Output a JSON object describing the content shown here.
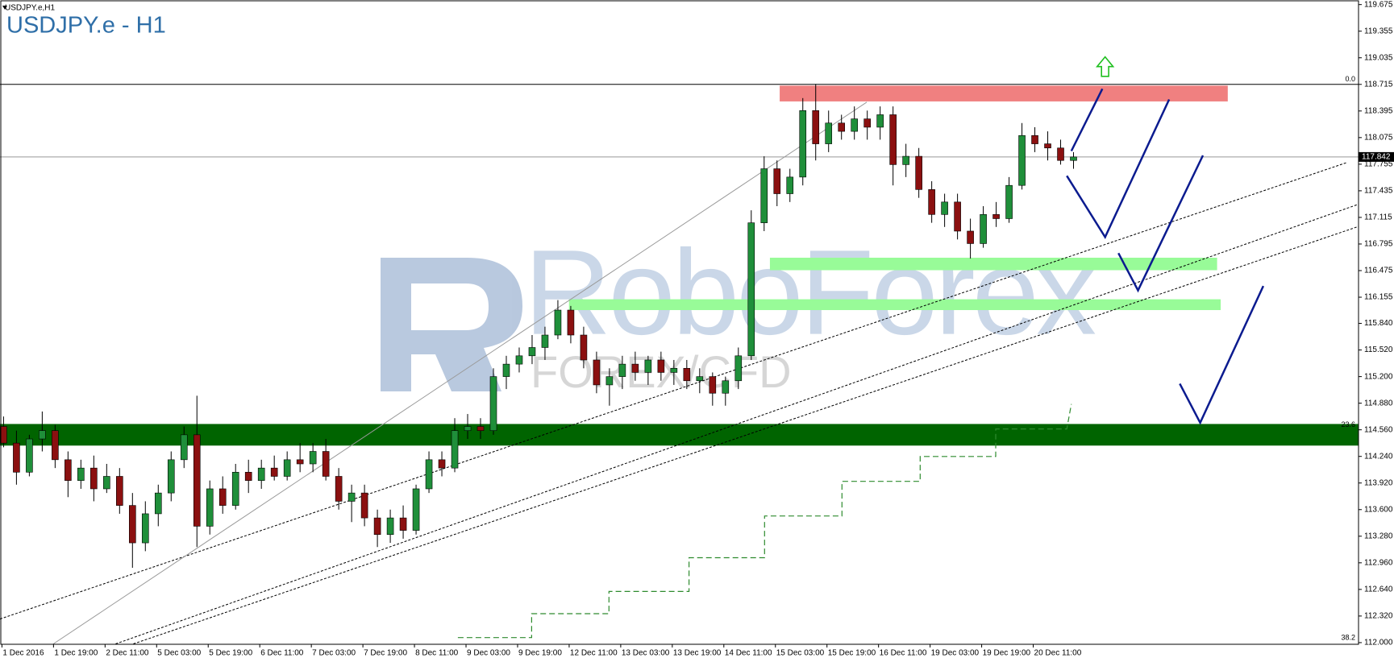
{
  "chart_data": {
    "type": "candlestick",
    "header": "USDJPY.e,H1",
    "title": "USDJPY.e - H1",
    "watermark": {
      "brand": "RoboForex",
      "sub": "FOREX/CFD"
    },
    "up_color": "#1f8f3a",
    "down_color": "#8b1010",
    "ylim": [
      111.98,
      119.73
    ],
    "yticks": [
      {
        "value": 119.675,
        "label": "119.675"
      },
      {
        "value": 119.355,
        "label": "119.355"
      },
      {
        "value": 119.035,
        "label": "119.035"
      },
      {
        "value": 118.715,
        "label": "118.715"
      },
      {
        "value": 118.395,
        "label": "118.395"
      },
      {
        "value": 118.075,
        "label": "118.075"
      },
      {
        "value": 117.755,
        "label": "117.755"
      },
      {
        "value": 117.435,
        "label": "117.435"
      },
      {
        "value": 117.115,
        "label": "117.115"
      },
      {
        "value": 116.795,
        "label": "116.795"
      },
      {
        "value": 116.475,
        "label": "116.475"
      },
      {
        "value": 116.155,
        "label": "116.155"
      },
      {
        "value": 115.84,
        "label": "115.840"
      },
      {
        "value": 115.52,
        "label": "115.520"
      },
      {
        "value": 115.2,
        "label": "115.200"
      },
      {
        "value": 114.88,
        "label": "114.880"
      },
      {
        "value": 114.56,
        "label": "114.560"
      },
      {
        "value": 114.24,
        "label": "114.240"
      },
      {
        "value": 113.92,
        "label": "113.920"
      },
      {
        "value": 113.6,
        "label": "113.600"
      },
      {
        "value": 113.28,
        "label": "113.280"
      },
      {
        "value": 112.96,
        "label": "112.960"
      },
      {
        "value": 112.64,
        "label": "112.640"
      },
      {
        "value": 112.32,
        "label": "112.320"
      },
      {
        "value": 112.0,
        "label": "112.000"
      }
    ],
    "last_price": 117.842,
    "fib_levels": [
      {
        "label": "0.0",
        "price": 118.715
      },
      {
        "label": "23.6",
        "price": 114.56
      },
      {
        "label": "38.2",
        "price": 112.0
      }
    ],
    "zones": [
      {
        "low": 118.51,
        "high": 118.7,
        "color": "#f08080"
      },
      {
        "low": 116.48,
        "high": 116.63,
        "color": "#98fb98"
      },
      {
        "low": 116.0,
        "high": 116.13,
        "color": "#98fb98"
      },
      {
        "low": 114.37,
        "high": 114.63,
        "color": "#006400"
      }
    ],
    "categories": [
      "1 Dec 2016",
      null,
      null,
      null,
      "1 Dec 19:00",
      null,
      null,
      null,
      "2 Dec 11:00",
      null,
      null,
      null,
      "5 Dec 03:00",
      null,
      null,
      null,
      "5 Dec 19:00",
      null,
      null,
      null,
      "6 Dec 11:00",
      null,
      null,
      null,
      "7 Dec 03:00",
      null,
      null,
      null,
      "7 Dec 19:00",
      null,
      null,
      null,
      "8 Dec 11:00",
      null,
      null,
      null,
      "9 Dec 03:00",
      null,
      null,
      null,
      "9 Dec 19:00",
      null,
      null,
      null,
      "12 Dec 11:00",
      null,
      null,
      null,
      "13 Dec 03:00",
      null,
      null,
      null,
      "13 Dec 19:00",
      null,
      null,
      null,
      "14 Dec 11:00",
      null,
      null,
      null,
      "15 Dec 03:00",
      null,
      null,
      null,
      "15 Dec 19:00",
      null,
      null,
      null,
      "16 Dec 11:00",
      null,
      null,
      null,
      "19 Dec 03:00",
      null,
      null,
      null,
      "19 Dec 19:00",
      null,
      null,
      null,
      "20 Dec 11:00",
      null,
      null,
      null
    ],
    "open": [
      114.6,
      114.4,
      114.05,
      114.45,
      114.55,
      114.2,
      113.95,
      114.1,
      113.85,
      114.0,
      113.65,
      113.2,
      113.55,
      113.8,
      114.2,
      114.5,
      113.4,
      113.85,
      113.65,
      114.05,
      113.95,
      114.1,
      114.0,
      114.2,
      114.15,
      114.3,
      114.0,
      113.7,
      113.8,
      113.5,
      113.3,
      113.5,
      113.35,
      113.85,
      114.2,
      114.1,
      114.55,
      114.6,
      114.55,
      115.2,
      115.35,
      115.45,
      115.55,
      115.7,
      116.0,
      115.7,
      115.4,
      115.1,
      115.2,
      115.35,
      115.25,
      115.4,
      115.25,
      115.3,
      115.15,
      115.2,
      115.0,
      115.15,
      115.45,
      117.05,
      117.7,
      117.4,
      117.6,
      118.4,
      118.0,
      118.25,
      118.15,
      118.3,
      118.2,
      118.35,
      117.75,
      117.85,
      117.45,
      117.15,
      117.3,
      116.95,
      116.8,
      117.15,
      117.1,
      117.5,
      118.1,
      118.0,
      117.95,
      117.8
    ],
    "high": [
      114.72,
      114.55,
      114.5,
      114.78,
      114.62,
      114.3,
      114.2,
      114.25,
      114.15,
      114.1,
      113.8,
      113.7,
      113.9,
      114.3,
      114.6,
      114.97,
      113.95,
      114.0,
      114.15,
      114.2,
      114.2,
      114.25,
      114.3,
      114.4,
      114.4,
      114.45,
      114.1,
      113.9,
      113.9,
      113.6,
      113.6,
      113.65,
      113.9,
      114.3,
      114.3,
      114.7,
      114.75,
      114.7,
      115.3,
      115.45,
      115.55,
      115.7,
      115.8,
      116.12,
      116.05,
      115.8,
      115.5,
      115.3,
      115.45,
      115.5,
      115.45,
      115.5,
      115.4,
      115.4,
      115.3,
      115.25,
      115.2,
      115.55,
      117.2,
      117.85,
      117.8,
      117.7,
      118.55,
      118.72,
      118.4,
      118.35,
      118.45,
      118.4,
      118.45,
      118.45,
      118.0,
      117.95,
      117.55,
      117.4,
      117.4,
      117.1,
      117.25,
      117.3,
      117.6,
      118.25,
      118.2,
      118.15,
      118.05,
      117.9
    ],
    "low": [
      114.35,
      113.9,
      114.0,
      114.3,
      114.1,
      113.75,
      113.85,
      113.7,
      113.8,
      113.55,
      112.9,
      113.1,
      113.4,
      113.7,
      114.1,
      113.15,
      113.3,
      113.55,
      113.6,
      113.8,
      113.85,
      113.95,
      113.95,
      114.05,
      114.05,
      113.95,
      113.6,
      113.45,
      113.4,
      113.15,
      113.2,
      113.25,
      113.3,
      113.8,
      114.0,
      114.05,
      114.45,
      114.45,
      114.5,
      115.05,
      115.25,
      115.35,
      115.4,
      115.65,
      115.6,
      115.3,
      115.0,
      114.85,
      115.05,
      115.15,
      115.1,
      115.15,
      115.1,
      115.05,
      115.0,
      114.85,
      114.85,
      115.05,
      115.4,
      116.95,
      117.25,
      117.3,
      117.5,
      117.8,
      117.9,
      118.05,
      118.05,
      118.05,
      118.05,
      117.5,
      117.6,
      117.35,
      117.05,
      117.0,
      116.85,
      116.62,
      116.75,
      117.0,
      117.05,
      117.45,
      117.9,
      117.8,
      117.75,
      117.7
    ],
    "close": [
      114.4,
      114.05,
      114.45,
      114.55,
      114.2,
      113.95,
      114.1,
      113.85,
      114.0,
      113.65,
      113.2,
      113.55,
      113.8,
      114.2,
      114.5,
      113.4,
      113.85,
      113.65,
      114.05,
      113.95,
      114.1,
      114.0,
      114.2,
      114.15,
      114.3,
      114.0,
      113.7,
      113.8,
      113.5,
      113.3,
      113.5,
      113.35,
      113.85,
      114.2,
      114.1,
      114.55,
      114.6,
      114.55,
      115.2,
      115.35,
      115.45,
      115.55,
      115.7,
      116.0,
      115.7,
      115.4,
      115.1,
      115.2,
      115.35,
      115.25,
      115.4,
      115.25,
      115.3,
      115.15,
      115.2,
      115.0,
      115.15,
      115.45,
      117.05,
      117.7,
      117.4,
      117.6,
      118.4,
      118.0,
      118.25,
      118.15,
      118.3,
      118.2,
      118.35,
      117.75,
      117.85,
      117.45,
      117.15,
      117.3,
      116.95,
      116.8,
      117.15,
      117.1,
      117.5,
      118.1,
      118.0,
      117.95,
      117.8,
      117.842
    ]
  }
}
